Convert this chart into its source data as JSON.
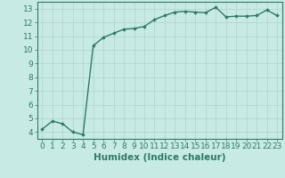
{
  "x": [
    0,
    1,
    2,
    3,
    4,
    5,
    6,
    7,
    8,
    9,
    10,
    11,
    12,
    13,
    14,
    15,
    16,
    17,
    18,
    19,
    20,
    21,
    22,
    23
  ],
  "y": [
    4.2,
    4.8,
    4.6,
    4.0,
    3.8,
    10.3,
    10.9,
    11.2,
    11.5,
    11.55,
    11.7,
    12.2,
    12.5,
    12.75,
    12.8,
    12.75,
    12.7,
    13.1,
    12.4,
    12.45,
    12.45,
    12.5,
    12.9,
    12.5
  ],
  "line_color": "#2d7a6a",
  "marker": "D",
  "marker_size": 1.8,
  "line_width": 1.0,
  "xlabel": "Humidex (Indice chaleur)",
  "xlim": [
    -0.5,
    23.5
  ],
  "ylim": [
    3.5,
    13.5
  ],
  "yticks": [
    4,
    5,
    6,
    7,
    8,
    9,
    10,
    11,
    12,
    13
  ],
  "xticks": [
    0,
    1,
    2,
    3,
    4,
    5,
    6,
    7,
    8,
    9,
    10,
    11,
    12,
    13,
    14,
    15,
    16,
    17,
    18,
    19,
    20,
    21,
    22,
    23
  ],
  "xtick_labels": [
    "0",
    "1",
    "2",
    "3",
    "4",
    "5",
    "6",
    "7",
    "8",
    "9",
    "10",
    "11",
    "12",
    "13",
    "14",
    "15",
    "16",
    "17",
    "18",
    "19",
    "20",
    "21",
    "22",
    "23"
  ],
  "background_color": "#c8eae4",
  "grid_color": "#b0d8d0",
  "tick_color": "#2d7a6a",
  "label_color": "#2d7a6a",
  "xlabel_fontsize": 7.5,
  "tick_fontsize": 6.5
}
